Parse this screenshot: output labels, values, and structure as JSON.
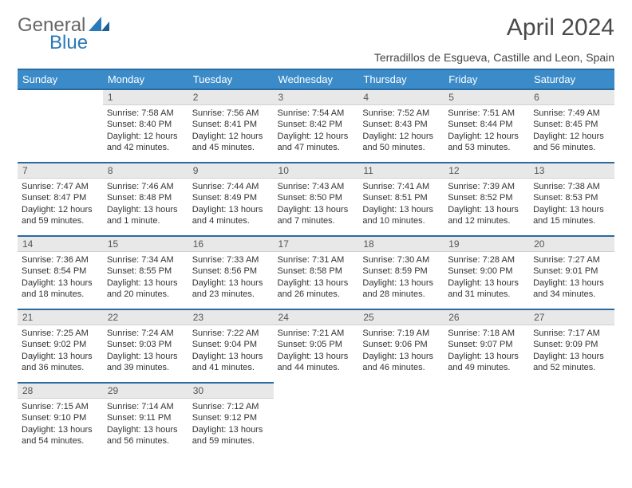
{
  "brand": {
    "part1": "General",
    "part2": "Blue"
  },
  "title": "April 2024",
  "subtitle": "Terradillos de Esgueva, Castille and Leon, Spain",
  "colors": {
    "header_bg": "#3b8bc9",
    "header_border": "#2a6aa0",
    "daynum_bg": "#e8e8e8",
    "text": "#333333",
    "brand_blue": "#2a7ab9",
    "brand_gray": "#666666"
  },
  "dayNames": [
    "Sunday",
    "Monday",
    "Tuesday",
    "Wednesday",
    "Thursday",
    "Friday",
    "Saturday"
  ],
  "startOffset": 1,
  "daysInMonth": 30,
  "days": {
    "1": {
      "sunrise": "7:58 AM",
      "sunset": "8:40 PM",
      "daylight": "12 hours and 42 minutes."
    },
    "2": {
      "sunrise": "7:56 AM",
      "sunset": "8:41 PM",
      "daylight": "12 hours and 45 minutes."
    },
    "3": {
      "sunrise": "7:54 AM",
      "sunset": "8:42 PM",
      "daylight": "12 hours and 47 minutes."
    },
    "4": {
      "sunrise": "7:52 AM",
      "sunset": "8:43 PM",
      "daylight": "12 hours and 50 minutes."
    },
    "5": {
      "sunrise": "7:51 AM",
      "sunset": "8:44 PM",
      "daylight": "12 hours and 53 minutes."
    },
    "6": {
      "sunrise": "7:49 AM",
      "sunset": "8:45 PM",
      "daylight": "12 hours and 56 minutes."
    },
    "7": {
      "sunrise": "7:47 AM",
      "sunset": "8:47 PM",
      "daylight": "12 hours and 59 minutes."
    },
    "8": {
      "sunrise": "7:46 AM",
      "sunset": "8:48 PM",
      "daylight": "13 hours and 1 minute."
    },
    "9": {
      "sunrise": "7:44 AM",
      "sunset": "8:49 PM",
      "daylight": "13 hours and 4 minutes."
    },
    "10": {
      "sunrise": "7:43 AM",
      "sunset": "8:50 PM",
      "daylight": "13 hours and 7 minutes."
    },
    "11": {
      "sunrise": "7:41 AM",
      "sunset": "8:51 PM",
      "daylight": "13 hours and 10 minutes."
    },
    "12": {
      "sunrise": "7:39 AM",
      "sunset": "8:52 PM",
      "daylight": "13 hours and 12 minutes."
    },
    "13": {
      "sunrise": "7:38 AM",
      "sunset": "8:53 PM",
      "daylight": "13 hours and 15 minutes."
    },
    "14": {
      "sunrise": "7:36 AM",
      "sunset": "8:54 PM",
      "daylight": "13 hours and 18 minutes."
    },
    "15": {
      "sunrise": "7:34 AM",
      "sunset": "8:55 PM",
      "daylight": "13 hours and 20 minutes."
    },
    "16": {
      "sunrise": "7:33 AM",
      "sunset": "8:56 PM",
      "daylight": "13 hours and 23 minutes."
    },
    "17": {
      "sunrise": "7:31 AM",
      "sunset": "8:58 PM",
      "daylight": "13 hours and 26 minutes."
    },
    "18": {
      "sunrise": "7:30 AM",
      "sunset": "8:59 PM",
      "daylight": "13 hours and 28 minutes."
    },
    "19": {
      "sunrise": "7:28 AM",
      "sunset": "9:00 PM",
      "daylight": "13 hours and 31 minutes."
    },
    "20": {
      "sunrise": "7:27 AM",
      "sunset": "9:01 PM",
      "daylight": "13 hours and 34 minutes."
    },
    "21": {
      "sunrise": "7:25 AM",
      "sunset": "9:02 PM",
      "daylight": "13 hours and 36 minutes."
    },
    "22": {
      "sunrise": "7:24 AM",
      "sunset": "9:03 PM",
      "daylight": "13 hours and 39 minutes."
    },
    "23": {
      "sunrise": "7:22 AM",
      "sunset": "9:04 PM",
      "daylight": "13 hours and 41 minutes."
    },
    "24": {
      "sunrise": "7:21 AM",
      "sunset": "9:05 PM",
      "daylight": "13 hours and 44 minutes."
    },
    "25": {
      "sunrise": "7:19 AM",
      "sunset": "9:06 PM",
      "daylight": "13 hours and 46 minutes."
    },
    "26": {
      "sunrise": "7:18 AM",
      "sunset": "9:07 PM",
      "daylight": "13 hours and 49 minutes."
    },
    "27": {
      "sunrise": "7:17 AM",
      "sunset": "9:09 PM",
      "daylight": "13 hours and 52 minutes."
    },
    "28": {
      "sunrise": "7:15 AM",
      "sunset": "9:10 PM",
      "daylight": "13 hours and 54 minutes."
    },
    "29": {
      "sunrise": "7:14 AM",
      "sunset": "9:11 PM",
      "daylight": "13 hours and 56 minutes."
    },
    "30": {
      "sunrise": "7:12 AM",
      "sunset": "9:12 PM",
      "daylight": "13 hours and 59 minutes."
    }
  },
  "labels": {
    "sunrise": "Sunrise:",
    "sunset": "Sunset:",
    "daylight": "Daylight:"
  }
}
